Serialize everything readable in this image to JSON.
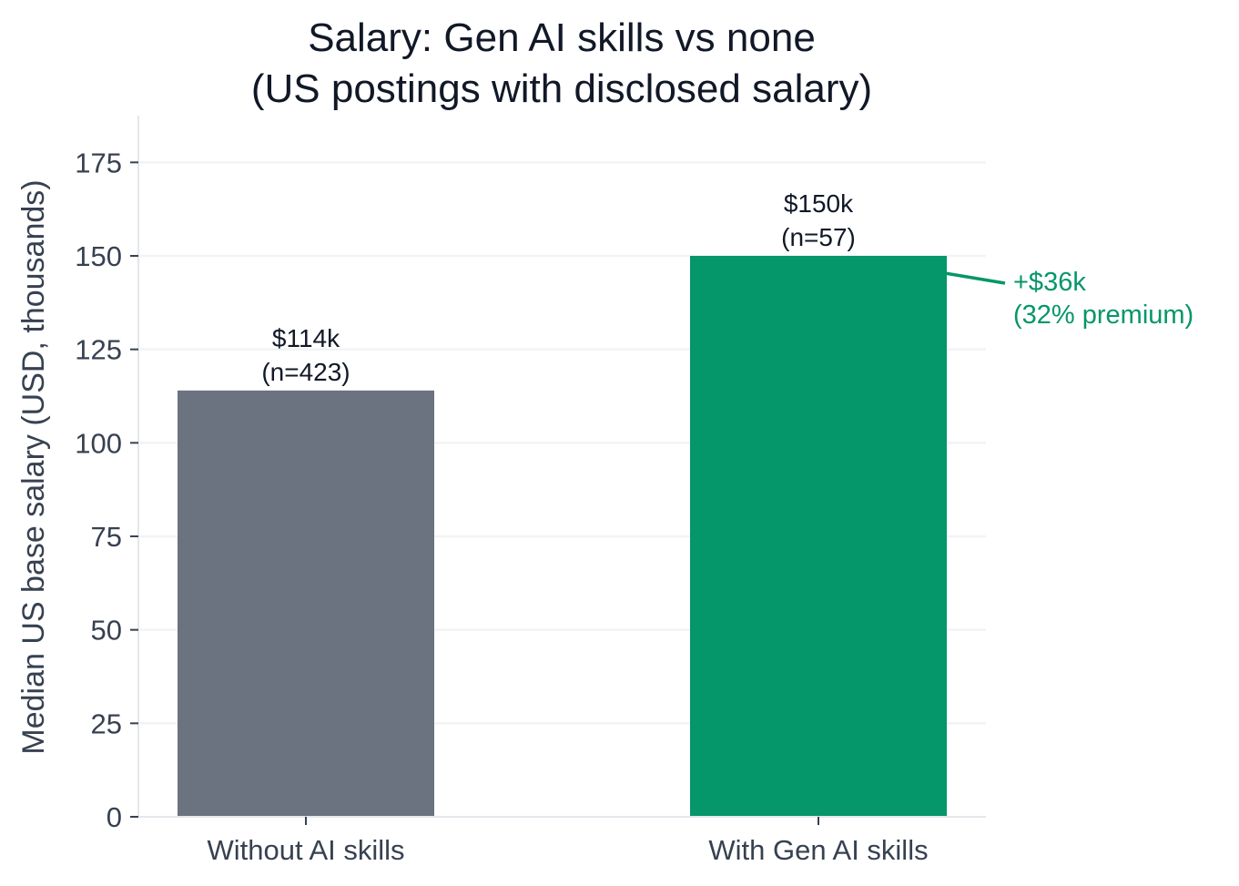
{
  "chart_data": {
    "type": "bar",
    "title_lines": [
      "Salary: Gen AI skills vs none",
      "(US postings with disclosed salary)"
    ],
    "xlabel": "",
    "ylabel": "Median US base salary (USD, thousands)",
    "ylim": [
      0,
      187.5
    ],
    "yticks": [
      0,
      25,
      50,
      75,
      100,
      125,
      150,
      175
    ],
    "grid": "horizontal",
    "categories": [
      "Without AI skills",
      "With Gen AI skills"
    ],
    "values": [
      114,
      150
    ],
    "colors": [
      "#6b7280",
      "#059669"
    ],
    "bar_labels": [
      [
        "$114k",
        "(n=423)"
      ],
      [
        "$150k",
        "(n=57)"
      ]
    ],
    "annotation": {
      "lines": [
        "+$36k",
        "(32% premium)"
      ],
      "color": "#059669",
      "points_to": {
        "category": "With Gen AI skills",
        "value": 150
      }
    }
  }
}
